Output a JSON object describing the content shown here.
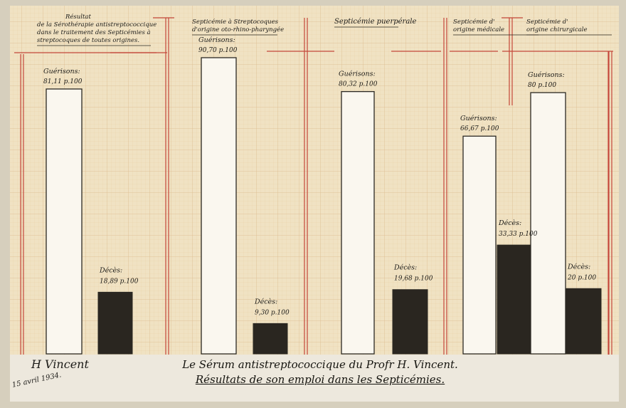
{
  "chart_data": {
    "type": "bar",
    "ylim": [
      0,
      100
    ],
    "groups": [
      {
        "title_lines": [
          "Résultat",
          "de la Sérothérapie antistreptococcique",
          "dans le traitement des Septicémies à",
          "streptocoques de toutes origines."
        ],
        "guerisons": {
          "label": "Guérisons:",
          "value": 81.11,
          "text": "81,11 p.100"
        },
        "deces": {
          "label": "Décès:",
          "value": 18.89,
          "text": "18,89 p.100"
        }
      },
      {
        "title_lines": [
          "Septicémie à Streptocoques",
          "d'origine oto-rhino-pharyngée"
        ],
        "guerisons": {
          "label": "Guérisons:",
          "value": 90.7,
          "text": "90,70 p.100"
        },
        "deces": {
          "label": "Décès:",
          "value": 9.3,
          "text": "9,30 p.100"
        }
      },
      {
        "title_lines": [
          "Septicémie puerpérale"
        ],
        "guerisons": {
          "label": "Guérisons:",
          "value": 80.32,
          "text": "80,32 p.100"
        },
        "deces": {
          "label": "Décès:",
          "value": 19.68,
          "text": "19,68 p.100"
        }
      },
      {
        "title_lines": [
          "Septicémie d'",
          "origine médicale"
        ],
        "guerisons": {
          "label": "Guérisons:",
          "value": 66.67,
          "text": "66,67 p.100"
        },
        "deces": {
          "label": "Décès:",
          "value": 33.33,
          "text": "33,33 p.100"
        }
      },
      {
        "title_lines": [
          "Septicémie d'",
          "origine chirurgicale"
        ],
        "guerisons": {
          "label": "Guérisons:",
          "value": 80,
          "text": "80 p.100"
        },
        "deces": {
          "label": "Décès:",
          "value": 20,
          "text": "20 p.100"
        }
      }
    ]
  },
  "caption": {
    "line1": "Le Sérum antistreptococcique du Profr H. Vincent.",
    "line2": "Résultats de son emploi dans les Septicémies."
  },
  "signature": {
    "name": "H Vincent",
    "date": "15 avril 1934."
  },
  "colors": {
    "paper": "#f0e2c3",
    "grid": "#e7cfa5",
    "red_rule": "#c4473a",
    "deces_fill": "#2a2620",
    "outline": "#2b2822"
  }
}
